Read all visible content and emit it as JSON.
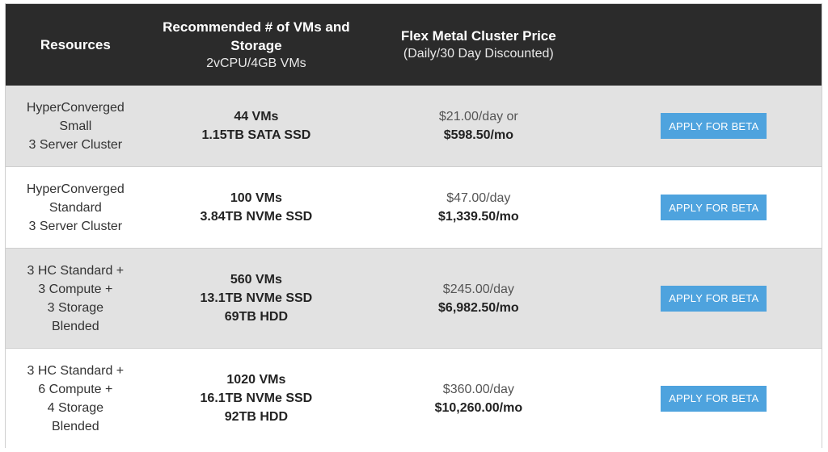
{
  "header": {
    "col1_title": "Resources",
    "col2_title_line1": "Recommended # of VMs and",
    "col2_title_line2": "Storage",
    "col2_sub": "2vCPU/4GB VMs",
    "col3_title": "Flex Metal Cluster Price",
    "col3_sub": "(Daily/30 Day Discounted)"
  },
  "rows": [
    {
      "resources": [
        "HyperConverged",
        "Small",
        "3 Server Cluster"
      ],
      "vms": [
        "44 VMs",
        "1.15TB SATA SSD"
      ],
      "price_daily": "$21.00/day or",
      "price_monthly": "$598.50/mo",
      "button": "APPLY FOR BETA"
    },
    {
      "resources": [
        "HyperConverged",
        "Standard",
        "3 Server Cluster"
      ],
      "vms": [
        "100 VMs",
        "3.84TB NVMe SSD"
      ],
      "price_daily": "$47.00/day",
      "price_monthly": "$1,339.50/mo",
      "button": "APPLY FOR BETA"
    },
    {
      "resources": [
        "3 HC Standard +",
        "3 Compute +",
        "3 Storage",
        "Blended"
      ],
      "vms": [
        "560 VMs",
        "13.1TB NVMe SSD",
        "69TB HDD"
      ],
      "price_daily": "$245.00/day",
      "price_monthly": "$6,982.50/mo",
      "button": "APPLY FOR BETA"
    },
    {
      "resources": [
        "3 HC Standard +",
        "6 Compute +",
        "4 Storage",
        "Blended"
      ],
      "vms": [
        "1020 VMs",
        "16.1TB NVMe SSD",
        "92TB HDD"
      ],
      "price_daily": "$360.00/day",
      "price_monthly": "$10,260.00/mo",
      "button": "APPLY FOR BETA"
    }
  ]
}
